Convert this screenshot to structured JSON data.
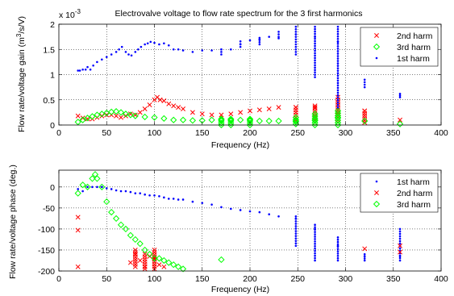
{
  "chart_data": [
    {
      "type": "scatter",
      "title": "Electrovalve voltage to flow rate spectrum for the 3 first harmonics",
      "xlabel": "Frequency (Hz)",
      "ylabel": "Flow rate/voltage gain (m³/s/V)",
      "ylabel_parts": [
        "Flow rate/voltage gain (m",
        "3",
        "/s/V)"
      ],
      "y_multiplier": "x 10",
      "y_multiplier_exp": "-3",
      "xlim": [
        0,
        400
      ],
      "ylim": [
        0,
        2
      ],
      "xticks": [
        0,
        50,
        100,
        150,
        200,
        250,
        300,
        350,
        400
      ],
      "yticks": [
        0,
        0.5,
        1,
        1.5,
        2
      ],
      "xtick_labels": [
        "0",
        "50",
        "100",
        "150",
        "200",
        "250",
        "300",
        "350",
        "400"
      ],
      "ytick_labels": [
        "0",
        "0.5",
        "1",
        "1.5",
        "2"
      ],
      "grid": true,
      "legend_position": "top-right",
      "series": [
        {
          "name": "2nd harm",
          "marker": "x",
          "color": "#ff0000",
          "x": [
            20,
            25,
            30,
            35,
            40,
            45,
            50,
            55,
            60,
            65,
            70,
            75,
            80,
            85,
            90,
            95,
            100,
            103,
            106,
            110,
            115,
            120,
            125,
            130,
            140,
            150,
            160,
            170,
            180,
            190,
            200,
            210,
            220,
            230,
            248,
            268,
            292,
            320,
            357
          ],
          "y": [
            0.18,
            0.14,
            0.12,
            0.12,
            0.15,
            0.18,
            0.2,
            0.2,
            0.18,
            0.15,
            0.18,
            0.22,
            0.2,
            0.25,
            0.32,
            0.4,
            0.5,
            0.55,
            0.5,
            0.48,
            0.42,
            0.38,
            0.35,
            0.32,
            0.25,
            0.22,
            0.2,
            0.2,
            0.22,
            0.25,
            0.28,
            0.3,
            0.32,
            0.35,
            0.35,
            0.35,
            0.4,
            0.28,
            0.1
          ],
          "ranges": [
            {
              "x": 248,
              "y": [
                0.1,
                0.35
              ]
            },
            {
              "x": 268,
              "y": [
                0.05,
                0.38
              ]
            },
            {
              "x": 292,
              "y": [
                0.05,
                0.55
              ]
            },
            {
              "x": 320,
              "y": [
                0.05,
                0.28
              ]
            }
          ]
        },
        {
          "name": "3rd harm",
          "marker": "diamond",
          "color": "#00ff00",
          "x": [
            20,
            25,
            30,
            35,
            40,
            45,
            50,
            55,
            60,
            65,
            70,
            75,
            80,
            90,
            100,
            110,
            120,
            130,
            140,
            150,
            160,
            170,
            180,
            190,
            200,
            210,
            220,
            230,
            248,
            268,
            292,
            320,
            357
          ],
          "y": [
            0.06,
            0.1,
            0.14,
            0.17,
            0.2,
            0.22,
            0.24,
            0.26,
            0.27,
            0.25,
            0.22,
            0.2,
            0.18,
            0.16,
            0.15,
            0.13,
            0.1,
            0.1,
            0.09,
            0.09,
            0.1,
            0.1,
            0.1,
            0.1,
            0.1,
            0.08,
            0.08,
            0.08,
            0.08,
            0.1,
            0.15,
            0.08,
            0.02
          ],
          "ranges": [
            {
              "x": 170,
              "y": [
                0.0,
                0.12
              ]
            },
            {
              "x": 180,
              "y": [
                0.0,
                0.12
              ]
            },
            {
              "x": 200,
              "y": [
                0.0,
                0.12
              ]
            },
            {
              "x": 248,
              "y": [
                0.02,
                0.15
              ]
            },
            {
              "x": 268,
              "y": [
                0.0,
                0.22
              ]
            },
            {
              "x": 292,
              "y": [
                0.0,
                0.28
              ]
            }
          ]
        },
        {
          "name": "1st harm",
          "marker": "dot",
          "color": "#0000ff",
          "x": [
            20,
            22,
            25,
            28,
            30,
            33,
            36,
            40,
            45,
            50,
            55,
            60,
            63,
            66,
            70,
            73,
            76,
            80,
            83,
            86,
            90,
            93,
            96,
            100,
            105,
            110,
            115,
            120,
            125,
            130,
            140,
            150,
            160,
            170,
            180,
            190,
            200,
            210,
            220,
            230,
            248,
            268,
            292,
            320,
            357
          ],
          "y": [
            1.08,
            1.08,
            1.1,
            1.1,
            1.15,
            1.1,
            1.18,
            1.25,
            1.3,
            1.35,
            1.4,
            1.45,
            1.5,
            1.55,
            1.45,
            1.4,
            1.38,
            1.45,
            1.5,
            1.55,
            1.6,
            1.62,
            1.65,
            1.63,
            1.6,
            1.62,
            1.58,
            1.5,
            1.5,
            1.48,
            1.45,
            1.48,
            1.48,
            1.5,
            1.5,
            1.6,
            1.68,
            1.7,
            1.75,
            1.72,
            1.8,
            1.75,
            1.65,
            1.5,
            1.4
          ],
          "ranges": [
            {
              "x": 170,
              "y": [
                1.4,
                1.5
              ]
            },
            {
              "x": 190,
              "y": [
                1.55,
                1.66
              ]
            },
            {
              "x": 210,
              "y": [
                1.6,
                1.73
              ]
            },
            {
              "x": 230,
              "y": [
                1.75,
                1.85
              ]
            },
            {
              "x": 248,
              "y": [
                1.4,
                1.95
              ]
            },
            {
              "x": 268,
              "y": [
                0.95,
                1.95
              ]
            },
            {
              "x": 292,
              "y": [
                0.35,
                1.95
              ]
            },
            {
              "x": 320,
              "y": [
                0.75,
                0.9
              ]
            },
            {
              "x": 357,
              "y": [
                0.55,
                0.62
              ]
            }
          ]
        }
      ]
    },
    {
      "type": "scatter",
      "title": "",
      "xlabel": "Frequency (Hz)",
      "ylabel": "Flow rate/voltage phase (deg.)",
      "xlim": [
        0,
        400
      ],
      "ylim": [
        -200,
        40
      ],
      "xticks": [
        0,
        50,
        100,
        150,
        200,
        250,
        300,
        350,
        400
      ],
      "yticks": [
        -200,
        -150,
        -100,
        -50,
        0
      ],
      "xtick_labels": [
        "0",
        "50",
        "100",
        "150",
        "200",
        "250",
        "300",
        "350",
        "400"
      ],
      "ytick_labels": [
        "-200",
        "-150",
        "-100",
        "-50",
        "0"
      ],
      "grid": true,
      "legend_position": "top-right",
      "series": [
        {
          "name": "1st harm",
          "marker": "dot",
          "color": "#0000ff",
          "x": [
            20,
            25,
            30,
            35,
            40,
            45,
            50,
            55,
            60,
            65,
            70,
            75,
            80,
            85,
            90,
            95,
            100,
            105,
            110,
            115,
            120,
            125,
            130,
            140,
            150,
            160,
            170,
            180,
            190,
            200,
            210,
            220,
            230,
            248,
            268,
            292,
            320,
            357
          ],
          "y": [
            -5,
            -10,
            0,
            0,
            0,
            0,
            -3,
            -5,
            -8,
            -10,
            -10,
            -12,
            -15,
            -15,
            -18,
            -20,
            -20,
            -22,
            -25,
            -28,
            -28,
            -30,
            -30,
            -35,
            -38,
            -42,
            -48,
            -52,
            -55,
            -58,
            -60,
            -65,
            -70,
            -75,
            -100,
            -140,
            -165,
            -165
          ],
          "ranges": [
            {
              "x": 248,
              "y": [
                -140,
                -70
              ]
            },
            {
              "x": 268,
              "y": [
                -175,
                -90
              ]
            },
            {
              "x": 292,
              "y": [
                -175,
                -120
              ]
            },
            {
              "x": 320,
              "y": [
                -175,
                -160
              ]
            },
            {
              "x": 357,
              "y": [
                -175,
                -100
              ]
            }
          ]
        },
        {
          "name": "2nd harm",
          "marker": "x",
          "color": "#ff0000",
          "x": [
            20,
            20,
            20,
            75,
            80,
            85,
            90,
            95,
            100,
            105,
            110,
            320,
            357,
            357
          ],
          "y": [
            -72,
            -103,
            -190,
            -180,
            -160,
            -175,
            -190,
            -165,
            -170,
            -185,
            -190,
            -147,
            -140,
            -155
          ],
          "ranges": [
            {
              "x": 80,
              "y": [
                -190,
                -150
              ]
            },
            {
              "x": 90,
              "y": [
                -195,
                -160
              ]
            },
            {
              "x": 100,
              "y": [
                -195,
                -150
              ]
            }
          ]
        },
        {
          "name": "3rd harm",
          "marker": "diamond",
          "color": "#00ff00",
          "x": [
            20,
            25,
            30,
            35,
            38,
            40,
            45,
            50,
            55,
            60,
            65,
            70,
            75,
            80,
            85,
            90,
            95,
            100,
            105,
            110,
            115,
            120,
            125,
            130,
            170
          ],
          "y": [
            -15,
            5,
            0,
            20,
            30,
            20,
            0,
            -35,
            -60,
            -75,
            -90,
            -100,
            -115,
            -125,
            -135,
            -150,
            -160,
            -170,
            -170,
            -175,
            -180,
            -185,
            -190,
            -195,
            -173
          ]
        }
      ]
    }
  ]
}
